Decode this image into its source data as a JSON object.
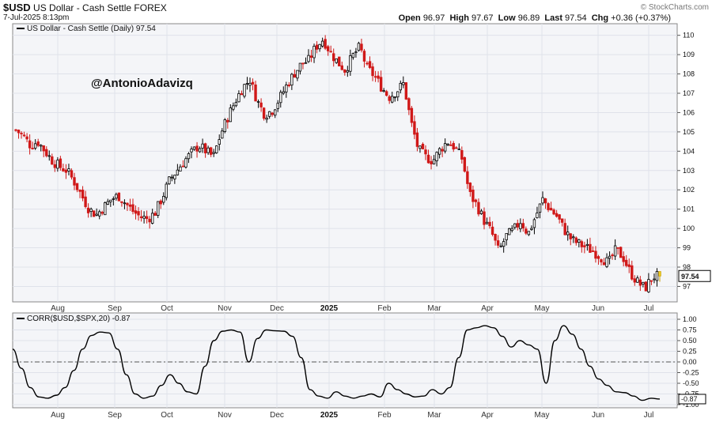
{
  "header": {
    "symbol": "$USD",
    "name": "US Dollar - Cash Settle",
    "exchange": "FOREX",
    "datetime": "7-Jul-2025 8:13pm",
    "brand": "© StockCharts.com",
    "ohlc": {
      "open_label": "Open",
      "open": "96.97",
      "high_label": "High",
      "high": "97.67",
      "low_label": "Low",
      "low": "96.89",
      "last_label": "Last",
      "last": "97.54",
      "chg_label": "Chg",
      "chg": "+0.36 (+0.37%)"
    }
  },
  "watermark": "@AntonioAdavizq",
  "colors": {
    "up": "#000000",
    "down": "#d01818",
    "price_box": "#ffffff",
    "last_candle": "#f5d020",
    "panel_bg": "#f4f5f8",
    "grid": "#dfe2ea"
  },
  "chart_data": [
    {
      "type": "candlestick",
      "title": "$USD US Dollar - Cash Settle (Daily) 97.54",
      "legend_label": "US Dollar - Cash Settle (Daily) 97.54",
      "ylim": [
        96.2,
        110.6
      ],
      "y_ticks": [
        "97",
        "98",
        "99",
        "100",
        "101",
        "102",
        "103",
        "104",
        "105",
        "106",
        "107",
        "108",
        "109",
        "110"
      ],
      "x_month_labels": [
        "Aug",
        "Sep",
        "Oct",
        "Nov",
        "Dec",
        "2025",
        "Feb",
        "Mar",
        "Apr",
        "May",
        "Jun",
        "Jul"
      ],
      "last_value_label": "97.54",
      "close_path": [
        105.1,
        104.8,
        104.3,
        104.5,
        104.0,
        103.5,
        103.2,
        103.0,
        102.4,
        101.7,
        101.0,
        100.7,
        101.1,
        101.5,
        101.7,
        101.3,
        100.9,
        100.6,
        100.5,
        100.8,
        101.6,
        102.5,
        103.0,
        103.5,
        103.9,
        104.3,
        104.0,
        103.7,
        104.9,
        105.8,
        106.6,
        107.3,
        107.7,
        106.6,
        105.9,
        106.1,
        106.7,
        107.4,
        108.0,
        108.5,
        108.7,
        109.4,
        109.8,
        109.1,
        108.6,
        108.2,
        108.9,
        109.4,
        108.3,
        107.9,
        107.3,
        106.8,
        107.1,
        107.5,
        105.5,
        104.1,
        103.7,
        103.5,
        104.1,
        104.5,
        104.2,
        103.6,
        101.8,
        101.2,
        100.4,
        99.8,
        98.8,
        99.6,
        99.9,
        100.4,
        99.7,
        100.6,
        101.5,
        101.0,
        100.6,
        99.9,
        99.4,
        99.2,
        99.0,
        98.8,
        98.5,
        98.2,
        98.9,
        98.5,
        97.7,
        97.2,
        96.9,
        97.5,
        97.54
      ]
    },
    {
      "type": "line",
      "legend_label": "CORR($USD,$SPX,20) -0.87",
      "ylim": [
        -1.0,
        1.0
      ],
      "y_ticks": [
        "1.00",
        "0.75",
        "0.50",
        "0.25",
        "0.00",
        "-0.25",
        "-0.50",
        "-0.75",
        "-1.00"
      ],
      "x_month_labels": [
        "Aug",
        "Sep",
        "Oct",
        "Nov",
        "Dec",
        "2025",
        "Feb",
        "Mar",
        "Apr",
        "May",
        "Jun",
        "Jul"
      ],
      "last_value_label": "-0.87",
      "values": [
        0.3,
        -0.15,
        -0.6,
        -0.82,
        -0.85,
        -0.78,
        -0.6,
        -0.2,
        0.3,
        0.62,
        0.7,
        0.68,
        0.3,
        -0.3,
        -0.75,
        -0.85,
        -0.8,
        -0.55,
        -0.3,
        -0.5,
        -0.7,
        -0.75,
        -0.1,
        0.5,
        0.72,
        0.75,
        0.7,
        0.0,
        0.55,
        0.75,
        0.73,
        0.72,
        0.6,
        0.1,
        -0.65,
        -0.8,
        -0.85,
        -0.7,
        -0.8,
        -0.85,
        -0.8,
        -0.75,
        -0.82,
        -0.5,
        -0.65,
        -0.75,
        -0.82,
        -0.8,
        -0.65,
        -0.75,
        -0.6,
        0.1,
        0.75,
        0.8,
        0.85,
        0.8,
        0.6,
        0.35,
        0.5,
        0.4,
        0.3,
        -0.5,
        0.5,
        0.85,
        0.65,
        0.3,
        -0.1,
        -0.4,
        -0.55,
        -0.7,
        -0.72,
        -0.8,
        -0.9,
        -0.85,
        -0.87
      ]
    }
  ]
}
